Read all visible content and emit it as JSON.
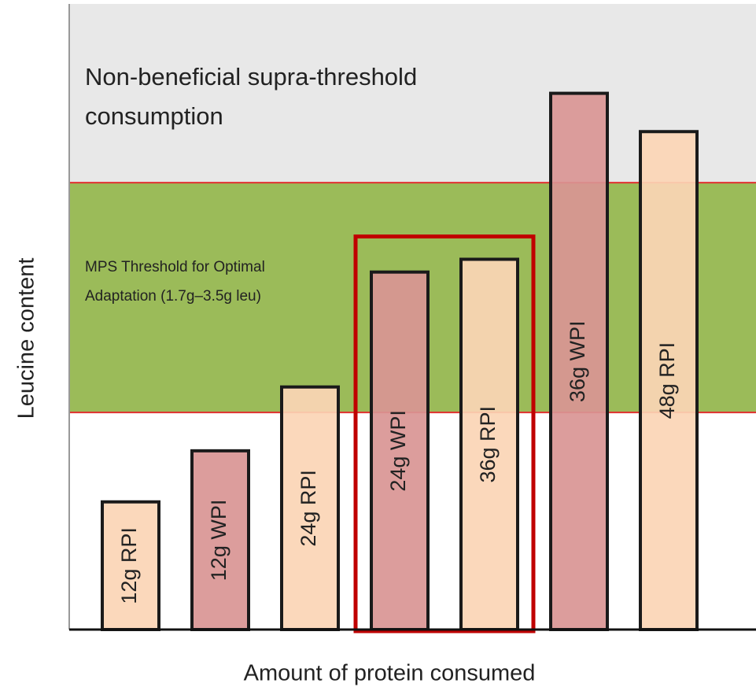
{
  "chart_data": {
    "type": "bar",
    "ylabel": "Leucine content",
    "xlabel": "Amount of protein consumed",
    "categories": [
      "12g RPI",
      "12g WPI",
      "24g RPI",
      "24g WPI",
      "36g RPI",
      "36g WPI",
      "48g RPI"
    ],
    "values": [
      1.0,
      1.4,
      1.9,
      2.8,
      2.9,
      4.2,
      3.9
    ],
    "colors": [
      "#fbd5b5",
      "#d99594",
      "#fbd5b5",
      "#d99594",
      "#fbd5b5",
      "#d99594",
      "#fbd5b5"
    ],
    "ylim": [
      0,
      4.9
    ],
    "regions": [
      {
        "lines": [
          "MPS Threshold for Optimal",
          "Adaptation (1.7g–3.5g leu)"
        ],
        "from": 1.7,
        "to": 3.5,
        "color": "#9bbb59"
      },
      {
        "lines": [
          "Non-beneficial supra-threshold",
          "consumption"
        ],
        "from": 3.5,
        "to": 4.9,
        "color": "#e8e8e8"
      }
    ],
    "highlight": {
      "from": 3,
      "to": 4,
      "color": "#c00000"
    }
  }
}
